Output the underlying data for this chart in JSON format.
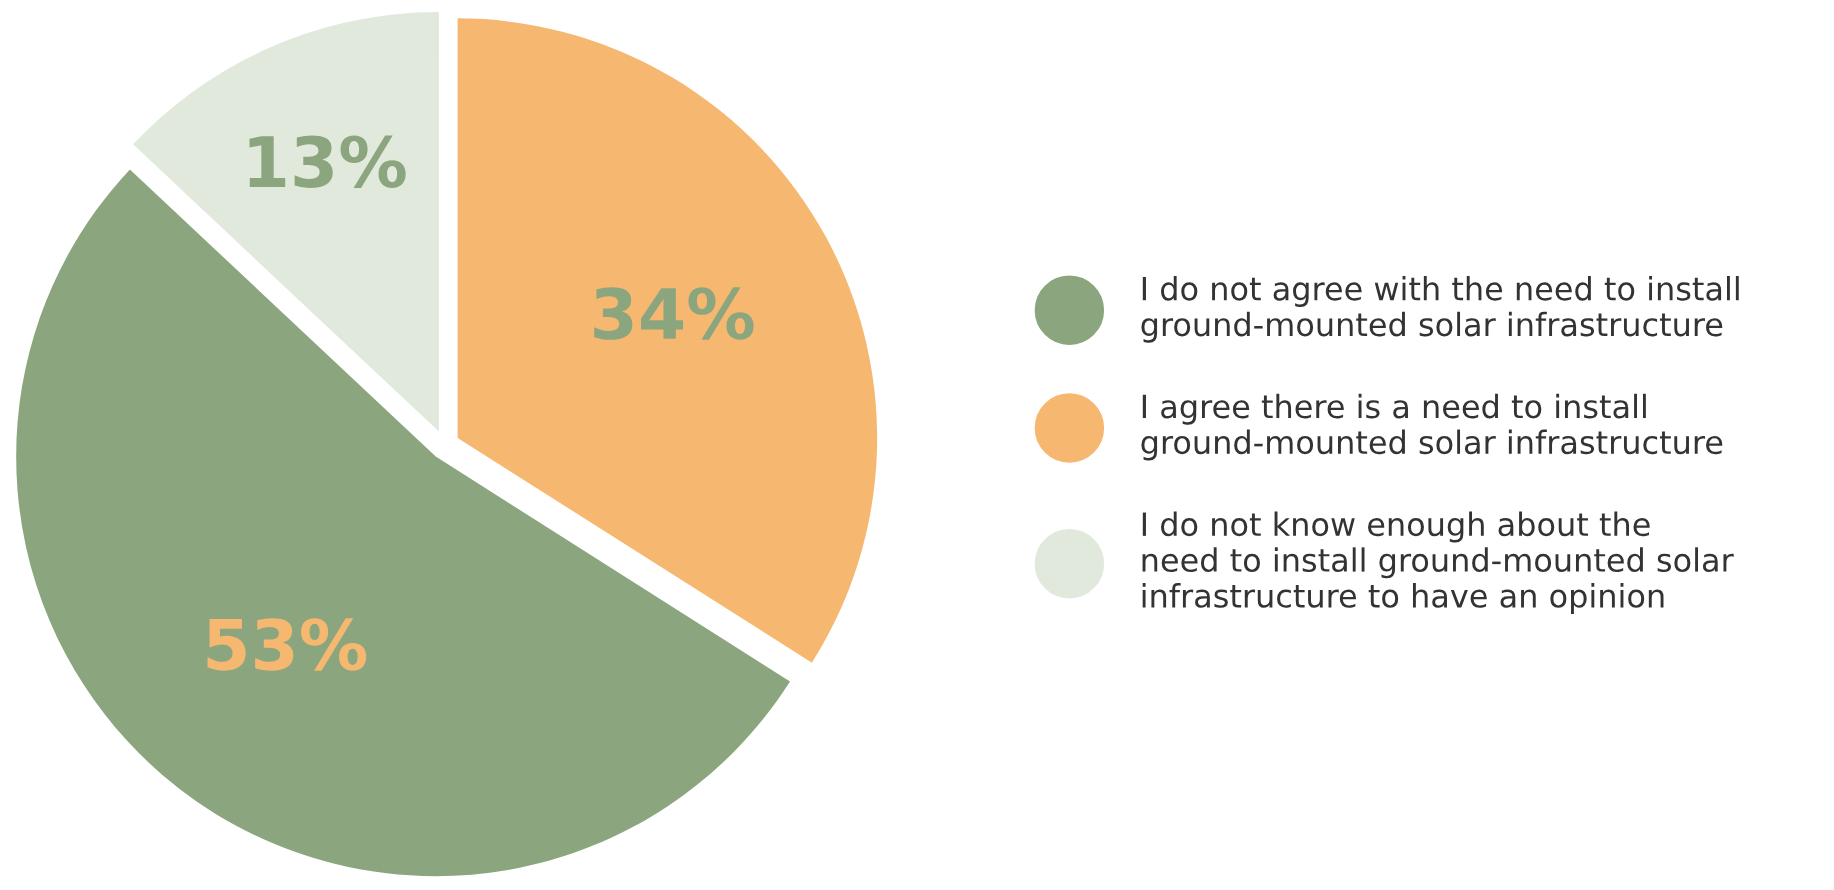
{
  "chart_data": {
    "type": "pie",
    "categories": [
      "I do not agree with the need to install\nground-mounted solar infrastructure",
      "I agree there is a need to install\nground-mounted solar infrastructure",
      "I do not know enough about the\nneed to install ground-mounted solar\ninfrastructure to have an opinion"
    ],
    "values": [
      53,
      34,
      13
    ],
    "colors": [
      "#8ba67e",
      "#f6b870",
      "#e1e9dc"
    ],
    "value_labels": [
      "53%",
      "34%",
      "13%"
    ],
    "legend": "right"
  }
}
